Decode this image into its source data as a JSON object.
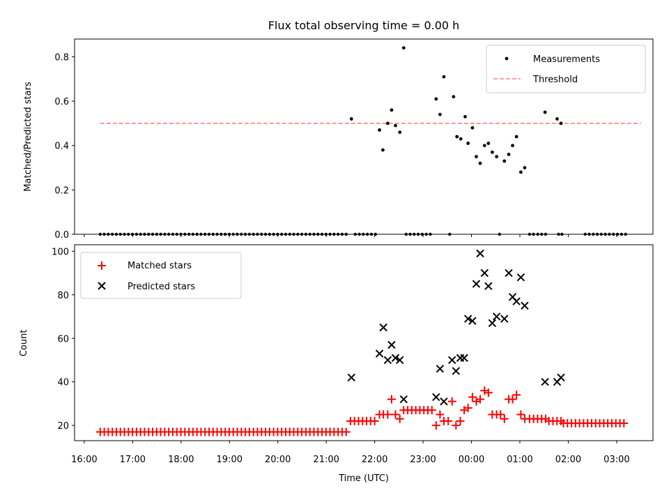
{
  "chart_data": {
    "type": "scatter",
    "title": "Flux total observing time = 0.00 h",
    "xlabel": "Time (UTC)",
    "x_unit": "hours since 16:00 UTC",
    "xlim": [
      -0.2,
      11.75
    ],
    "x_ticks": [
      {
        "x": 0,
        "label": "16:00"
      },
      {
        "x": 1,
        "label": "17:00"
      },
      {
        "x": 2,
        "label": "18:00"
      },
      {
        "x": 3,
        "label": "19:00"
      },
      {
        "x": 4,
        "label": "20:00"
      },
      {
        "x": 5,
        "label": "21:00"
      },
      {
        "x": 6,
        "label": "22:00"
      },
      {
        "x": 7,
        "label": "23:00"
      },
      {
        "x": 8,
        "label": "00:00"
      },
      {
        "x": 9,
        "label": "01:00"
      },
      {
        "x": 10,
        "label": "02:00"
      },
      {
        "x": 11,
        "label": "03:00"
      }
    ],
    "top": {
      "ylabel": "Matched/Predicted stars",
      "ylim": [
        0,
        0.88
      ],
      "y_ticks": [
        {
          "v": 0,
          "label": "0.0"
        },
        {
          "v": 0.2,
          "label": "0.2"
        },
        {
          "v": 0.4,
          "label": "0.4"
        },
        {
          "v": 0.6,
          "label": "0.6"
        },
        {
          "v": 0.8,
          "label": "0.8"
        }
      ],
      "threshold": {
        "name": "Threshold",
        "value": 0.5,
        "x_range": [
          0.33,
          11.5
        ],
        "color": "#ff7f7f"
      },
      "measurements_name": "Measurements",
      "legend_position": "top-right",
      "zero_ranges": [
        {
          "start": 0.33,
          "end": 5.43,
          "step": 0.0833
        },
        {
          "start": 5.6,
          "end": 6.05,
          "step": 0.0833
        },
        {
          "start": 6.65,
          "end": 7.2,
          "step": 0.0833
        },
        {
          "start": 10.35,
          "end": 11.2,
          "step": 0.0833
        }
      ],
      "zero_points": [
        7.55,
        8.58,
        9.2,
        9.28,
        9.37,
        9.45,
        9.53,
        9.8,
        9.87
      ],
      "points": [
        {
          "x": 5.52,
          "y": 0.52
        },
        {
          "x": 6.1,
          "y": 0.47
        },
        {
          "x": 6.17,
          "y": 0.38
        },
        {
          "x": 6.27,
          "y": 0.5
        },
        {
          "x": 6.35,
          "y": 0.56
        },
        {
          "x": 6.43,
          "y": 0.49
        },
        {
          "x": 6.52,
          "y": 0.46
        },
        {
          "x": 6.6,
          "y": 0.84
        },
        {
          "x": 7.27,
          "y": 0.61
        },
        {
          "x": 7.35,
          "y": 0.54
        },
        {
          "x": 7.43,
          "y": 0.71
        },
        {
          "x": 7.63,
          "y": 0.62
        },
        {
          "x": 7.7,
          "y": 0.44
        },
        {
          "x": 7.78,
          "y": 0.43
        },
        {
          "x": 7.87,
          "y": 0.53
        },
        {
          "x": 7.93,
          "y": 0.41
        },
        {
          "x": 8.02,
          "y": 0.48
        },
        {
          "x": 8.1,
          "y": 0.35
        },
        {
          "x": 8.18,
          "y": 0.32
        },
        {
          "x": 8.27,
          "y": 0.4
        },
        {
          "x": 8.35,
          "y": 0.41
        },
        {
          "x": 8.43,
          "y": 0.37
        },
        {
          "x": 8.52,
          "y": 0.35
        },
        {
          "x": 8.68,
          "y": 0.33
        },
        {
          "x": 8.77,
          "y": 0.36
        },
        {
          "x": 8.85,
          "y": 0.4
        },
        {
          "x": 8.93,
          "y": 0.44
        },
        {
          "x": 9.02,
          "y": 0.28
        },
        {
          "x": 9.1,
          "y": 0.3
        },
        {
          "x": 9.52,
          "y": 0.55
        },
        {
          "x": 9.77,
          "y": 0.52
        },
        {
          "x": 9.85,
          "y": 0.5
        }
      ]
    },
    "bottom": {
      "ylabel": "Count",
      "ylim": [
        13,
        103
      ],
      "y_ticks": [
        {
          "v": 20,
          "label": "20"
        },
        {
          "v": 40,
          "label": "40"
        },
        {
          "v": 60,
          "label": "60"
        },
        {
          "v": 80,
          "label": "80"
        },
        {
          "v": 100,
          "label": "100"
        }
      ],
      "legend_position": "top-left",
      "matched": {
        "name": "Matched stars",
        "color": "#ff0000",
        "constant_runs": [
          {
            "start": 0.33,
            "end": 5.43,
            "step": 0.0833,
            "value": 17
          },
          {
            "start": 5.5,
            "end": 6.05,
            "step": 0.0833,
            "value": 22
          },
          {
            "start": 6.6,
            "end": 7.2,
            "step": 0.0833,
            "value": 27
          },
          {
            "start": 9.2,
            "end": 9.6,
            "step": 0.0833,
            "value": 23
          },
          {
            "start": 9.6,
            "end": 9.85,
            "step": 0.0833,
            "value": 22
          },
          {
            "start": 9.9,
            "end": 11.2,
            "step": 0.0833,
            "value": 21
          }
        ],
        "points": [
          {
            "x": 6.1,
            "y": 25
          },
          {
            "x": 6.18,
            "y": 25
          },
          {
            "x": 6.27,
            "y": 25
          },
          {
            "x": 6.35,
            "y": 32
          },
          {
            "x": 6.43,
            "y": 25
          },
          {
            "x": 6.52,
            "y": 23
          },
          {
            "x": 7.27,
            "y": 20
          },
          {
            "x": 7.35,
            "y": 25
          },
          {
            "x": 7.43,
            "y": 22
          },
          {
            "x": 7.52,
            "y": 22
          },
          {
            "x": 7.6,
            "y": 31
          },
          {
            "x": 7.68,
            "y": 20
          },
          {
            "x": 7.77,
            "y": 22
          },
          {
            "x": 7.85,
            "y": 27
          },
          {
            "x": 7.93,
            "y": 28
          },
          {
            "x": 8.02,
            "y": 33
          },
          {
            "x": 8.1,
            "y": 31
          },
          {
            "x": 8.18,
            "y": 32
          },
          {
            "x": 8.27,
            "y": 36
          },
          {
            "x": 8.35,
            "y": 35
          },
          {
            "x": 8.43,
            "y": 25
          },
          {
            "x": 8.52,
            "y": 25
          },
          {
            "x": 8.6,
            "y": 25
          },
          {
            "x": 8.68,
            "y": 23
          },
          {
            "x": 8.77,
            "y": 32
          },
          {
            "x": 8.85,
            "y": 32
          },
          {
            "x": 8.93,
            "y": 34
          },
          {
            "x": 9.02,
            "y": 25
          },
          {
            "x": 9.1,
            "y": 23
          }
        ]
      },
      "predicted": {
        "name": "Predicted stars",
        "color": "#000000",
        "points": [
          {
            "x": 5.52,
            "y": 42
          },
          {
            "x": 6.1,
            "y": 53
          },
          {
            "x": 6.18,
            "y": 65
          },
          {
            "x": 6.27,
            "y": 50
          },
          {
            "x": 6.35,
            "y": 57
          },
          {
            "x": 6.43,
            "y": 51
          },
          {
            "x": 6.52,
            "y": 50
          },
          {
            "x": 6.6,
            "y": 32
          },
          {
            "x": 7.27,
            "y": 33
          },
          {
            "x": 7.35,
            "y": 46
          },
          {
            "x": 7.43,
            "y": 31
          },
          {
            "x": 7.6,
            "y": 50
          },
          {
            "x": 7.68,
            "y": 45
          },
          {
            "x": 7.77,
            "y": 51
          },
          {
            "x": 7.85,
            "y": 51
          },
          {
            "x": 7.93,
            "y": 69
          },
          {
            "x": 8.02,
            "y": 68
          },
          {
            "x": 8.1,
            "y": 85
          },
          {
            "x": 8.18,
            "y": 99
          },
          {
            "x": 8.27,
            "y": 90
          },
          {
            "x": 8.35,
            "y": 84
          },
          {
            "x": 8.43,
            "y": 67
          },
          {
            "x": 8.52,
            "y": 70
          },
          {
            "x": 8.68,
            "y": 69
          },
          {
            "x": 8.77,
            "y": 90
          },
          {
            "x": 8.85,
            "y": 79
          },
          {
            "x": 8.93,
            "y": 77
          },
          {
            "x": 9.02,
            "y": 88
          },
          {
            "x": 9.1,
            "y": 75
          },
          {
            "x": 9.52,
            "y": 40
          },
          {
            "x": 9.77,
            "y": 40
          },
          {
            "x": 9.85,
            "y": 42
          }
        ]
      }
    }
  }
}
